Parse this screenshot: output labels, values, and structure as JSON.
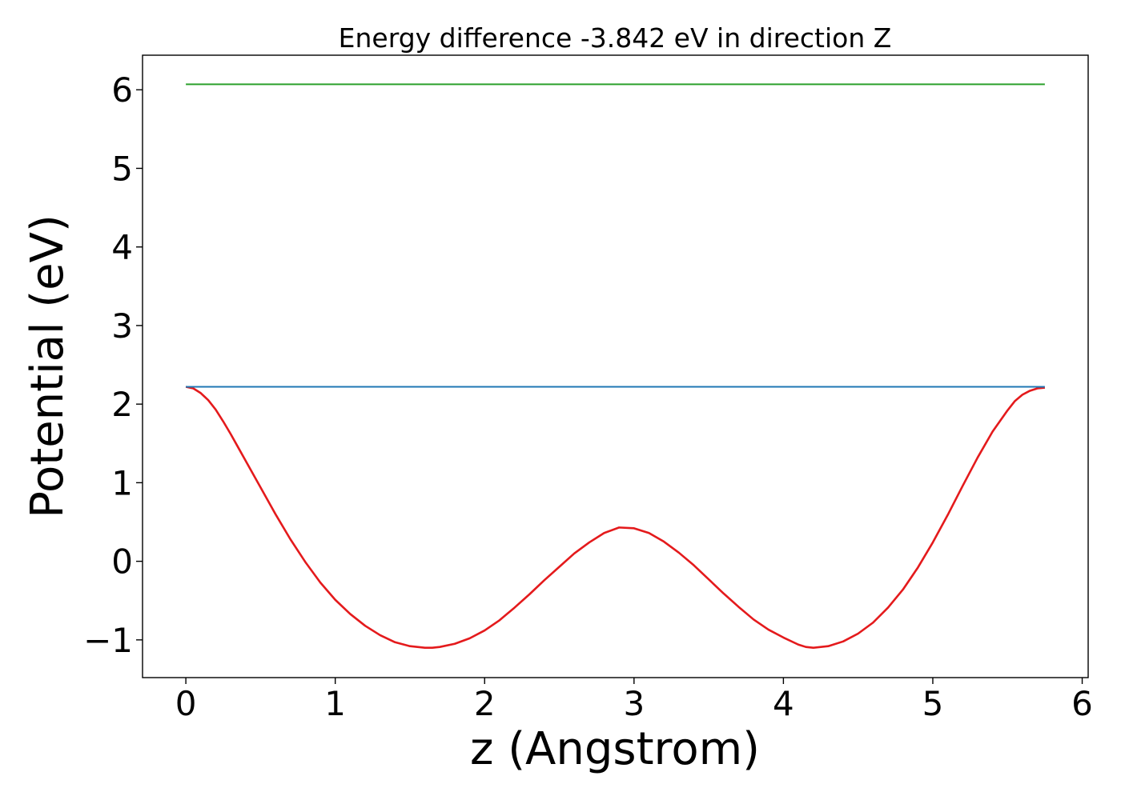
{
  "chart_data": {
    "type": "line",
    "title": "Energy difference -3.842 eV in direction Z",
    "xlabel": "z (Angstrom)",
    "ylabel": "Potential (eV)",
    "xlim": [
      -0.29,
      6.04
    ],
    "ylim": [
      -1.48,
      6.44
    ],
    "grid": false,
    "x_ticks": [
      0,
      1,
      2,
      3,
      4,
      5,
      6
    ],
    "x_tick_labels": [
      "0",
      "1",
      "2",
      "3",
      "4",
      "5",
      "6"
    ],
    "y_ticks": [
      -1,
      0,
      1,
      2,
      3,
      4,
      5,
      6
    ],
    "y_tick_labels": [
      "−1",
      "0",
      "1",
      "2",
      "3",
      "4",
      "5",
      "6"
    ],
    "series": [
      {
        "color": "#e41a1c",
        "x": [
          0,
          0.05,
          0.1,
          0.15,
          0.2,
          0.25,
          0.3,
          0.35,
          0.4,
          0.5,
          0.6,
          0.7,
          0.8,
          0.9,
          1.0,
          1.1,
          1.2,
          1.3,
          1.4,
          1.5,
          1.6,
          1.65,
          1.7,
          1.8,
          1.9,
          2.0,
          2.1,
          2.2,
          2.3,
          2.4,
          2.5,
          2.6,
          2.7,
          2.8,
          2.9,
          3.0,
          3.1,
          3.2,
          3.3,
          3.4,
          3.5,
          3.6,
          3.7,
          3.8,
          3.9,
          4.0,
          4.1,
          4.15,
          4.2,
          4.3,
          4.4,
          4.5,
          4.6,
          4.7,
          4.8,
          4.9,
          5.0,
          5.1,
          5.2,
          5.3,
          5.4,
          5.5,
          5.55,
          5.6,
          5.65,
          5.7,
          5.75
        ],
        "y": [
          2.22,
          2.2,
          2.14,
          2.05,
          1.93,
          1.78,
          1.62,
          1.45,
          1.28,
          0.94,
          0.6,
          0.28,
          -0.01,
          -0.27,
          -0.49,
          -0.67,
          -0.82,
          -0.94,
          -1.03,
          -1.08,
          -1.1,
          -1.1,
          -1.09,
          -1.05,
          -0.98,
          -0.88,
          -0.75,
          -0.59,
          -0.42,
          -0.24,
          -0.07,
          0.1,
          0.24,
          0.36,
          0.43,
          0.42,
          0.36,
          0.25,
          0.11,
          -0.05,
          -0.23,
          -0.41,
          -0.58,
          -0.74,
          -0.87,
          -0.97,
          -1.06,
          -1.09,
          -1.1,
          -1.08,
          -1.02,
          -0.92,
          -0.78,
          -0.59,
          -0.36,
          -0.08,
          0.24,
          0.59,
          0.96,
          1.32,
          1.65,
          1.92,
          2.04,
          2.12,
          2.17,
          2.2,
          2.21
        ]
      },
      {
        "color": "#1f77b4",
        "x": [
          0,
          5.75
        ],
        "y": [
          2.22,
          2.22
        ]
      },
      {
        "color": "#2ca02c",
        "x": [
          0,
          5.75
        ],
        "y": [
          6.07,
          6.07
        ]
      }
    ]
  }
}
